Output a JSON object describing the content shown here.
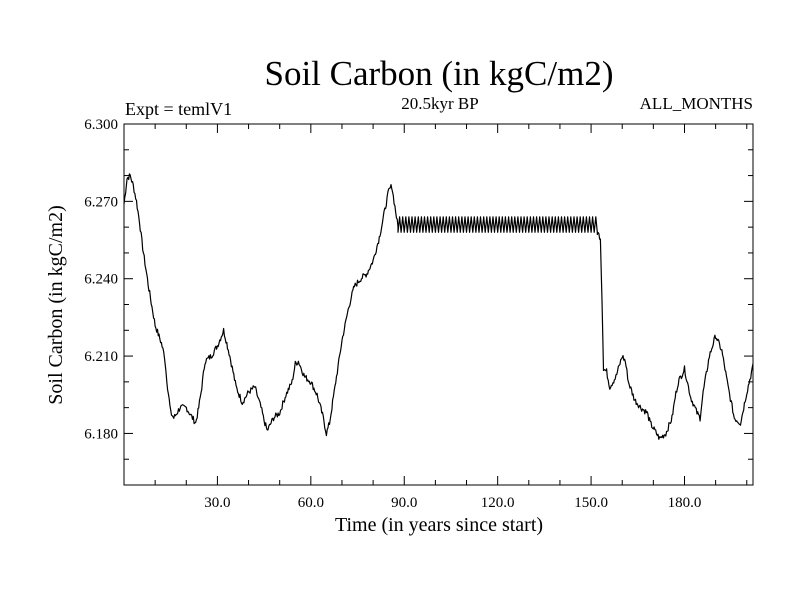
{
  "chart_data": {
    "type": "line",
    "title": "Soil Carbon (in kgC/m2)",
    "subtitle_left": "Expt = temlV1",
    "subtitle_center": "20.5kyr BP",
    "subtitle_right": "ALL_MONTHS",
    "xlabel": "Time (in years since start)",
    "ylabel": "Soil Carbon (in kgC/m2)",
    "xlim": [
      0,
      202
    ],
    "ylim": [
      6.16,
      6.3
    ],
    "x_ticks": [
      30,
      60,
      90,
      120,
      150,
      180
    ],
    "x_tick_labels": [
      "30.0",
      "60.0",
      "90.0",
      "120.0",
      "150.0",
      "180.0"
    ],
    "y_ticks": [
      6.18,
      6.21,
      6.24,
      6.27,
      6.3
    ],
    "y_tick_labels": [
      "6.180",
      "6.210",
      "6.240",
      "6.270",
      "6.300"
    ],
    "grid": false,
    "series": [
      {
        "name": "Soil Carbon",
        "x": [
          0,
          1,
          2,
          3,
          4,
          5,
          6,
          8,
          10,
          12,
          13,
          14,
          15,
          16,
          18,
          20,
          22,
          23,
          24,
          25,
          26,
          28,
          29,
          30,
          31,
          32,
          34,
          35,
          36,
          38,
          40,
          42,
          43,
          44,
          45,
          46,
          48,
          50,
          52,
          54,
          55,
          56,
          58,
          60,
          62,
          64,
          65,
          66,
          68,
          70,
          72,
          73,
          74,
          76,
          78,
          80,
          82,
          83,
          84,
          85,
          86,
          87,
          88,
          152,
          153,
          153.5,
          154,
          155,
          156,
          158,
          160,
          161,
          162,
          164,
          166,
          168,
          169,
          170,
          172,
          174,
          176,
          177,
          178,
          180,
          182,
          184,
          185,
          186,
          188,
          190,
          192,
          194,
          196,
          198,
          200,
          202
        ],
        "y": [
          6.269,
          6.279,
          6.28,
          6.276,
          6.27,
          6.262,
          6.252,
          6.236,
          6.222,
          6.215,
          6.21,
          6.198,
          6.188,
          6.186,
          6.19,
          6.19,
          6.186,
          6.184,
          6.19,
          6.198,
          6.208,
          6.21,
          6.212,
          6.214,
          6.217,
          6.22,
          6.21,
          6.204,
          6.198,
          6.192,
          6.196,
          6.198,
          6.194,
          6.19,
          6.185,
          6.181,
          6.186,
          6.188,
          6.195,
          6.2,
          6.207,
          6.208,
          6.202,
          6.2,
          6.195,
          6.186,
          6.18,
          6.184,
          6.2,
          6.216,
          6.228,
          6.233,
          6.237,
          6.24,
          6.242,
          6.247,
          6.256,
          6.262,
          6.268,
          6.274,
          6.276,
          6.268,
          6.26,
          6.258,
          6.256,
          6.232,
          6.205,
          6.204,
          6.198,
          6.202,
          6.21,
          6.208,
          6.2,
          6.193,
          6.19,
          6.188,
          6.184,
          6.182,
          6.178,
          6.18,
          6.186,
          6.194,
          6.2,
          6.205,
          6.194,
          6.188,
          6.186,
          6.196,
          6.21,
          6.218,
          6.212,
          6.198,
          6.186,
          6.184,
          6.196,
          6.206
        ]
      }
    ],
    "oscillation_band": {
      "x_start": 88,
      "x_end": 152,
      "y_low": 6.258,
      "y_high": 6.264,
      "cycles": 64
    }
  }
}
